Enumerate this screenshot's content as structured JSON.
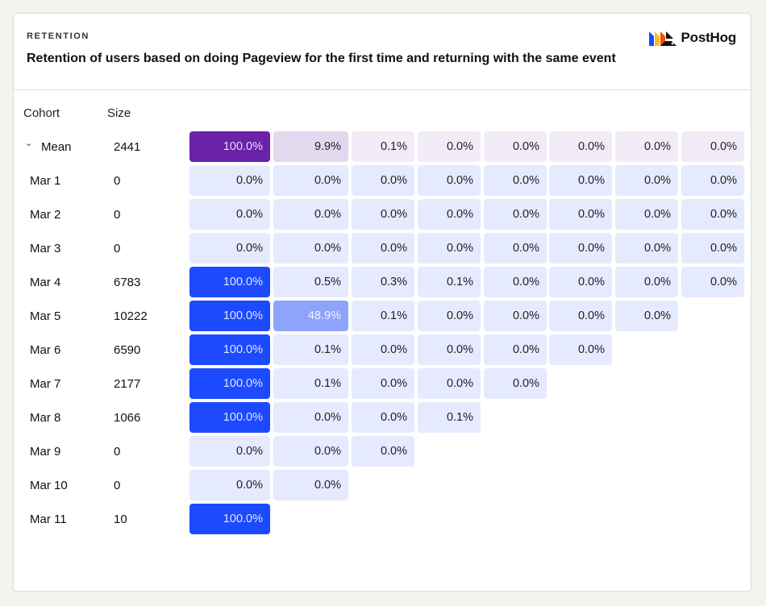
{
  "header": {
    "kicker": "RETENTION",
    "title": "Retention of users based on doing Pageview for the first time and returning with the same event",
    "logo_text": "PostHog"
  },
  "columns": {
    "cohort": "Cohort",
    "size": "Size"
  },
  "colors": {
    "mean_strong": "#6b21a8",
    "mean_light": "#e3d9ee",
    "mean_faint": "#f1ecf7",
    "cohort_strong": "#1d4aff",
    "cohort_mid": "#8ea4fb",
    "cohort_faint": "#e5eaff"
  },
  "chart_data": {
    "type": "table",
    "columns": [
      "Cohort",
      "Size"
    ],
    "rows": [
      {
        "label": "Mean",
        "size": "2441",
        "values": [
          100.0,
          9.9,
          0.1,
          0.0,
          0.0,
          0.0,
          0.0,
          0.0
        ],
        "display": [
          "100.0%",
          "9.9%",
          "0.1%",
          "0.0%",
          "0.0%",
          "0.0%",
          "0.0%",
          "0.0%"
        ]
      },
      {
        "label": "Mar 1",
        "size": "0",
        "values": [
          0.0,
          0.0,
          0.0,
          0.0,
          0.0,
          0.0,
          0.0,
          0.0
        ],
        "display": [
          "0.0%",
          "0.0%",
          "0.0%",
          "0.0%",
          "0.0%",
          "0.0%",
          "0.0%",
          "0.0%"
        ]
      },
      {
        "label": "Mar 2",
        "size": "0",
        "values": [
          0.0,
          0.0,
          0.0,
          0.0,
          0.0,
          0.0,
          0.0,
          0.0
        ],
        "display": [
          "0.0%",
          "0.0%",
          "0.0%",
          "0.0%",
          "0.0%",
          "0.0%",
          "0.0%",
          "0.0%"
        ]
      },
      {
        "label": "Mar 3",
        "size": "0",
        "values": [
          0.0,
          0.0,
          0.0,
          0.0,
          0.0,
          0.0,
          0.0,
          0.0
        ],
        "display": [
          "0.0%",
          "0.0%",
          "0.0%",
          "0.0%",
          "0.0%",
          "0.0%",
          "0.0%",
          "0.0%"
        ]
      },
      {
        "label": "Mar 4",
        "size": "6783",
        "values": [
          100.0,
          0.5,
          0.3,
          0.1,
          0.0,
          0.0,
          0.0,
          0.0
        ],
        "display": [
          "100.0%",
          "0.5%",
          "0.3%",
          "0.1%",
          "0.0%",
          "0.0%",
          "0.0%",
          "0.0%"
        ]
      },
      {
        "label": "Mar 5",
        "size": "10222",
        "values": [
          100.0,
          48.9,
          0.1,
          0.0,
          0.0,
          0.0,
          0.0
        ],
        "display": [
          "100.0%",
          "48.9%",
          "0.1%",
          "0.0%",
          "0.0%",
          "0.0%",
          "0.0%"
        ]
      },
      {
        "label": "Mar 6",
        "size": "6590",
        "values": [
          100.0,
          0.1,
          0.0,
          0.0,
          0.0,
          0.0
        ],
        "display": [
          "100.0%",
          "0.1%",
          "0.0%",
          "0.0%",
          "0.0%",
          "0.0%"
        ]
      },
      {
        "label": "Mar 7",
        "size": "2177",
        "values": [
          100.0,
          0.1,
          0.0,
          0.0,
          0.0
        ],
        "display": [
          "100.0%",
          "0.1%",
          "0.0%",
          "0.0%",
          "0.0%"
        ]
      },
      {
        "label": "Mar 8",
        "size": "1066",
        "values": [
          100.0,
          0.0,
          0.0,
          0.1
        ],
        "display": [
          "100.0%",
          "0.0%",
          "0.0%",
          "0.1%"
        ]
      },
      {
        "label": "Mar 9",
        "size": "0",
        "values": [
          0.0,
          0.0,
          0.0
        ],
        "display": [
          "0.0%",
          "0.0%",
          "0.0%"
        ]
      },
      {
        "label": "Mar 10",
        "size": "0",
        "values": [
          0.0,
          0.0
        ],
        "display": [
          "0.0%",
          "0.0%"
        ]
      },
      {
        "label": "Mar 11",
        "size": "10",
        "values": [
          100.0
        ],
        "display": [
          "100.0%"
        ]
      }
    ]
  }
}
